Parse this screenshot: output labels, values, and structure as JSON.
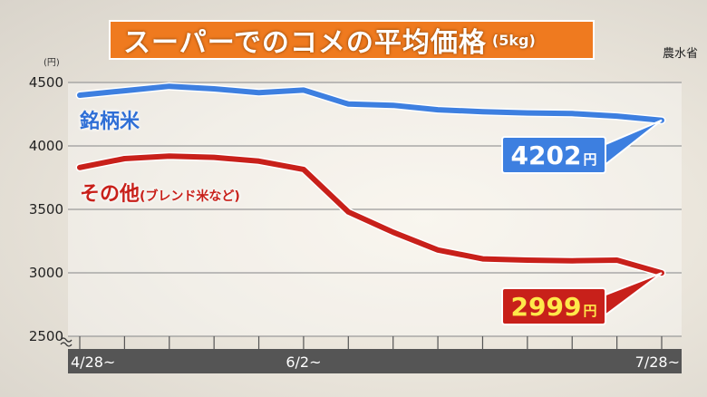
{
  "title": "スーパーでのコメの平均価格",
  "title_unit": "(5kg)",
  "source": "農水省",
  "y_unit": "(円)",
  "chart_data": {
    "type": "line",
    "title": "スーパーでのコメの平均価格(5kg)",
    "ylabel": "(円)",
    "ylim": [
      2500,
      4500
    ],
    "yticks": [
      2500,
      3000,
      3500,
      4000,
      4500
    ],
    "x": [
      "4/28~",
      "",
      "",
      "",
      "",
      "6/2~",
      "",
      "",
      "",
      "",
      "",
      "",
      "",
      "7/28~"
    ],
    "xtick_labels": [
      "4/28~",
      "6/2~",
      "7/28~"
    ],
    "series": [
      {
        "name": "銘柄米",
        "color": "#3d7fe0",
        "values": [
          4400,
          4435,
          4470,
          4450,
          4420,
          4440,
          4330,
          4320,
          4285,
          4270,
          4260,
          4255,
          4235,
          4202
        ]
      },
      {
        "name": "その他(ブレンド米など)",
        "color": "#c8201a",
        "values": [
          3830,
          3900,
          3920,
          3910,
          3880,
          3815,
          3480,
          3320,
          3180,
          3110,
          3100,
          3095,
          3100,
          2999
        ]
      }
    ],
    "grid": true,
    "callouts": [
      {
        "value": "4202",
        "unit": "円"
      },
      {
        "value": "2999",
        "unit": "円"
      }
    ],
    "series_labels": {
      "brand": "銘柄米",
      "other_main": "その他",
      "other_sub": "(ブレンド米など)"
    }
  }
}
